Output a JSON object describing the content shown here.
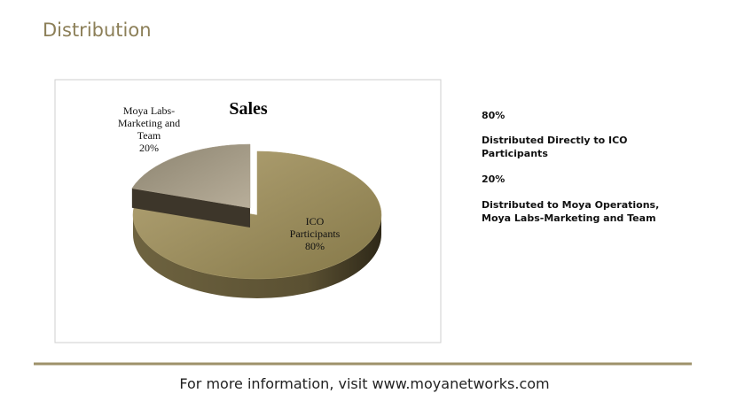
{
  "header": {
    "title": "Distribution"
  },
  "chart_data": {
    "type": "pie",
    "title": "Sales",
    "categories": [
      "ICO Participants",
      "Moya Labs-Marketing and Team"
    ],
    "values": [
      80,
      20
    ],
    "value_labels": [
      "80%",
      "20%"
    ],
    "colors": [
      "#a89968",
      "#a89e8a"
    ]
  },
  "notes": [
    {
      "value": "80%",
      "text": "Distributed Directly to ICO Participants"
    },
    {
      "value": "20%",
      "text": "Distributed to Moya Operations, Moya Labs-Marketing and Team"
    }
  ],
  "footer": {
    "text": "For more information, visit www.moyanetworks.com"
  }
}
